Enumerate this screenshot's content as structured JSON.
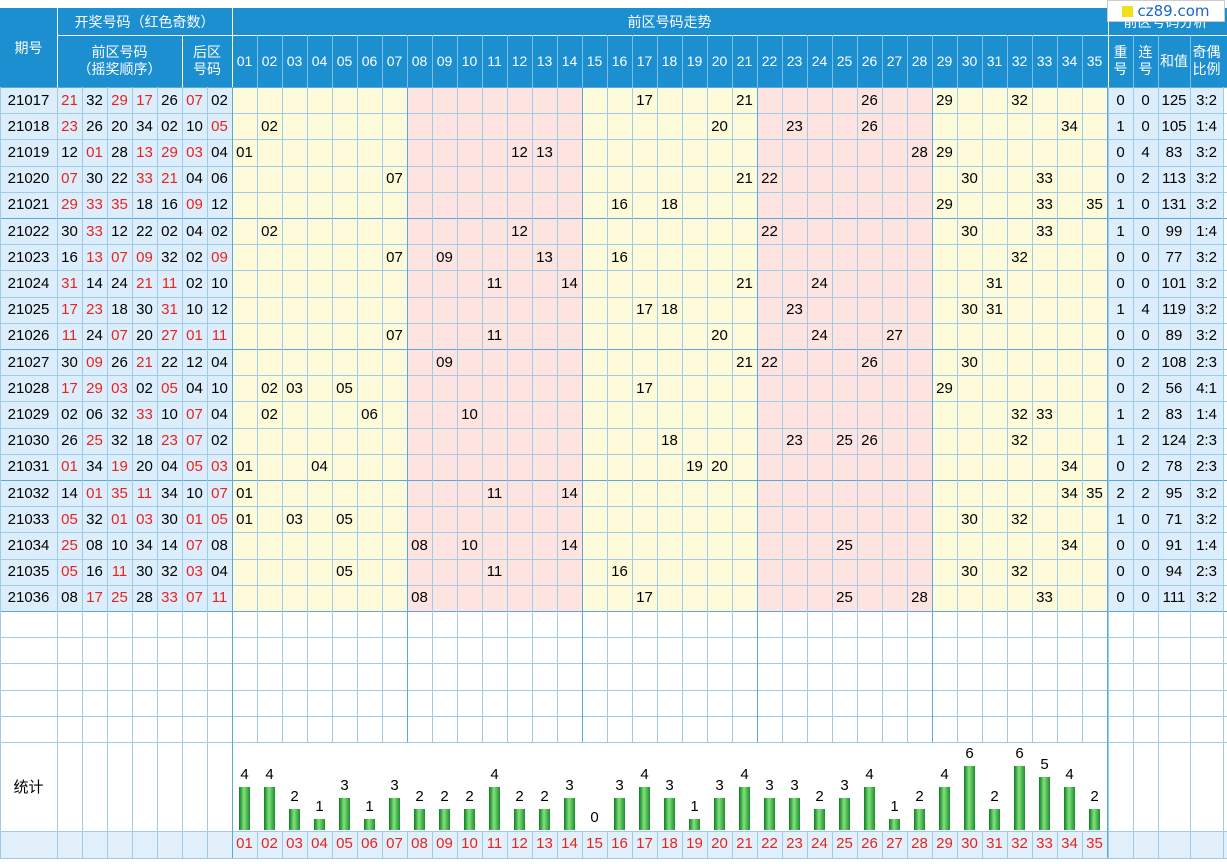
{
  "site_logo": "cz89.com",
  "headers": {
    "period": "期号",
    "draw": "开奖号码（红色奇数）",
    "front": "前区号码",
    "front_sub": "（摇奖顺序）",
    "back": "后区",
    "back_sub": "号码",
    "trend": "前区号码走势",
    "analysis": "前区号码分析",
    "repeat": "重",
    "repeat2": "号",
    "consec": "连",
    "consec2": "号",
    "sum": "和值",
    "ratio": "奇偶",
    "ratio2": "比例"
  },
  "stats_label": "统计",
  "columns": [
    "01",
    "02",
    "03",
    "04",
    "05",
    "06",
    "07",
    "08",
    "09",
    "10",
    "11",
    "12",
    "13",
    "14",
    "15",
    "16",
    "17",
    "18",
    "19",
    "20",
    "21",
    "22",
    "23",
    "24",
    "25",
    "26",
    "27",
    "28",
    "29",
    "30",
    "31",
    "32",
    "33",
    "34",
    "35"
  ],
  "rows": [
    {
      "period": "21017",
      "front": [
        "21",
        "32",
        "29",
        "17",
        "26"
      ],
      "back": [
        "07",
        "02"
      ],
      "repeat": "0",
      "consec": "0",
      "sum": "125",
      "ratio": "3:2"
    },
    {
      "period": "21018",
      "front": [
        "23",
        "26",
        "20",
        "34",
        "02"
      ],
      "back": [
        "10",
        "05"
      ],
      "repeat": "1",
      "consec": "0",
      "sum": "105",
      "ratio": "1:4"
    },
    {
      "period": "21019",
      "front": [
        "12",
        "01",
        "28",
        "13",
        "29"
      ],
      "back": [
        "03",
        "04"
      ],
      "repeat": "0",
      "consec": "4",
      "sum": "83",
      "ratio": "3:2"
    },
    {
      "period": "21020",
      "front": [
        "07",
        "30",
        "22",
        "33",
        "21"
      ],
      "back": [
        "04",
        "06"
      ],
      "repeat": "0",
      "consec": "2",
      "sum": "113",
      "ratio": "3:2"
    },
    {
      "period": "21021",
      "front": [
        "29",
        "33",
        "35",
        "18",
        "16"
      ],
      "back": [
        "09",
        "12"
      ],
      "repeat": "1",
      "consec": "0",
      "sum": "131",
      "ratio": "3:2"
    },
    {
      "period": "21022",
      "front": [
        "30",
        "33",
        "12",
        "22",
        "02"
      ],
      "back": [
        "04",
        "02"
      ],
      "repeat": "1",
      "consec": "0",
      "sum": "99",
      "ratio": "1:4"
    },
    {
      "period": "21023",
      "front": [
        "16",
        "13",
        "07",
        "09",
        "32"
      ],
      "back": [
        "02",
        "09"
      ],
      "repeat": "0",
      "consec": "0",
      "sum": "77",
      "ratio": "3:2"
    },
    {
      "period": "21024",
      "front": [
        "31",
        "14",
        "24",
        "21",
        "11"
      ],
      "back": [
        "02",
        "10"
      ],
      "repeat": "0",
      "consec": "0",
      "sum": "101",
      "ratio": "3:2"
    },
    {
      "period": "21025",
      "front": [
        "17",
        "23",
        "18",
        "30",
        "31"
      ],
      "back": [
        "10",
        "12"
      ],
      "repeat": "1",
      "consec": "4",
      "sum": "119",
      "ratio": "3:2"
    },
    {
      "period": "21026",
      "front": [
        "11",
        "24",
        "07",
        "20",
        "27"
      ],
      "back": [
        "01",
        "11"
      ],
      "repeat": "0",
      "consec": "0",
      "sum": "89",
      "ratio": "3:2"
    },
    {
      "period": "21027",
      "front": [
        "30",
        "09",
        "26",
        "21",
        "22"
      ],
      "back": [
        "12",
        "04"
      ],
      "repeat": "0",
      "consec": "2",
      "sum": "108",
      "ratio": "2:3"
    },
    {
      "period": "21028",
      "front": [
        "17",
        "29",
        "03",
        "02",
        "05"
      ],
      "back": [
        "04",
        "10"
      ],
      "repeat": "0",
      "consec": "2",
      "sum": "56",
      "ratio": "4:1"
    },
    {
      "period": "21029",
      "front": [
        "02",
        "06",
        "32",
        "33",
        "10"
      ],
      "back": [
        "07",
        "04"
      ],
      "repeat": "1",
      "consec": "2",
      "sum": "83",
      "ratio": "1:4"
    },
    {
      "period": "21030",
      "front": [
        "26",
        "25",
        "32",
        "18",
        "23"
      ],
      "back": [
        "07",
        "02"
      ],
      "repeat": "1",
      "consec": "2",
      "sum": "124",
      "ratio": "2:3"
    },
    {
      "period": "21031",
      "front": [
        "01",
        "34",
        "19",
        "20",
        "04"
      ],
      "back": [
        "05",
        "03"
      ],
      "repeat": "0",
      "consec": "2",
      "sum": "78",
      "ratio": "2:3"
    },
    {
      "period": "21032",
      "front": [
        "14",
        "01",
        "35",
        "11",
        "34"
      ],
      "back": [
        "10",
        "07"
      ],
      "repeat": "2",
      "consec": "2",
      "sum": "95",
      "ratio": "3:2"
    },
    {
      "period": "21033",
      "front": [
        "05",
        "32",
        "01",
        "03",
        "30"
      ],
      "back": [
        "01",
        "05"
      ],
      "repeat": "1",
      "consec": "0",
      "sum": "71",
      "ratio": "3:2"
    },
    {
      "period": "21034",
      "front": [
        "25",
        "08",
        "10",
        "34",
        "14"
      ],
      "back": [
        "07",
        "08"
      ],
      "repeat": "0",
      "consec": "0",
      "sum": "91",
      "ratio": "1:4"
    },
    {
      "period": "21035",
      "front": [
        "05",
        "16",
        "11",
        "30",
        "32"
      ],
      "back": [
        "03",
        "04"
      ],
      "repeat": "0",
      "consec": "0",
      "sum": "94",
      "ratio": "2:3"
    },
    {
      "period": "21036",
      "front": [
        "08",
        "17",
        "25",
        "28",
        "33"
      ],
      "back": [
        "07",
        "11"
      ],
      "repeat": "0",
      "consec": "0",
      "sum": "111",
      "ratio": "3:2"
    }
  ],
  "chart_data": {
    "type": "bar",
    "categories": [
      "01",
      "02",
      "03",
      "04",
      "05",
      "06",
      "07",
      "08",
      "09",
      "10",
      "11",
      "12",
      "13",
      "14",
      "15",
      "16",
      "17",
      "18",
      "19",
      "20",
      "21",
      "22",
      "23",
      "24",
      "25",
      "26",
      "27",
      "28",
      "29",
      "30",
      "31",
      "32",
      "33",
      "34",
      "35"
    ],
    "values": [
      4,
      4,
      2,
      1,
      3,
      1,
      3,
      2,
      2,
      2,
      4,
      2,
      2,
      3,
      0,
      3,
      4,
      3,
      1,
      3,
      4,
      3,
      3,
      2,
      3,
      4,
      1,
      2,
      4,
      6,
      2,
      6,
      5,
      4,
      2
    ],
    "title": "统计",
    "xlabel": "",
    "ylabel": "",
    "colors": {
      "bar": "#2e9a3c",
      "odd": "#e8231e",
      "header": "#1c8fd0",
      "zone_yellow": "#fdfbd9",
      "zone_pink": "#fde4e1"
    }
  }
}
